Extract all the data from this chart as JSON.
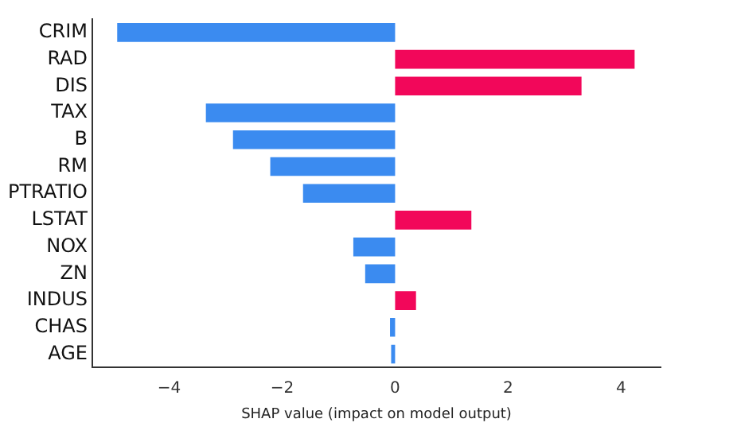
{
  "chart_data": {
    "type": "bar",
    "orientation": "horizontal",
    "xlabel": "SHAP value (impact on model output)",
    "categories": [
      "CRIM",
      "RAD",
      "DIS",
      "TAX",
      "B",
      "RM",
      "PTRATIO",
      "LSTAT",
      "NOX",
      "ZN",
      "INDUS",
      "CHAS",
      "AGE"
    ],
    "values": [
      -4.92,
      4.24,
      3.3,
      -3.35,
      -2.87,
      -2.21,
      -1.63,
      1.35,
      -0.74,
      -0.53,
      0.37,
      -0.09,
      -0.07
    ],
    "colors": [
      "#3b8bf0",
      "#f2075a",
      "#f2075a",
      "#3b8bf0",
      "#3b8bf0",
      "#3b8bf0",
      "#3b8bf0",
      "#f2075a",
      "#3b8bf0",
      "#3b8bf0",
      "#f2075a",
      "#3b8bf0",
      "#3b8bf0"
    ],
    "xlim": [
      -5.36,
      4.7
    ],
    "xticks": [
      -4,
      -2,
      0,
      2,
      4
    ],
    "grid": false,
    "legend": false
  }
}
